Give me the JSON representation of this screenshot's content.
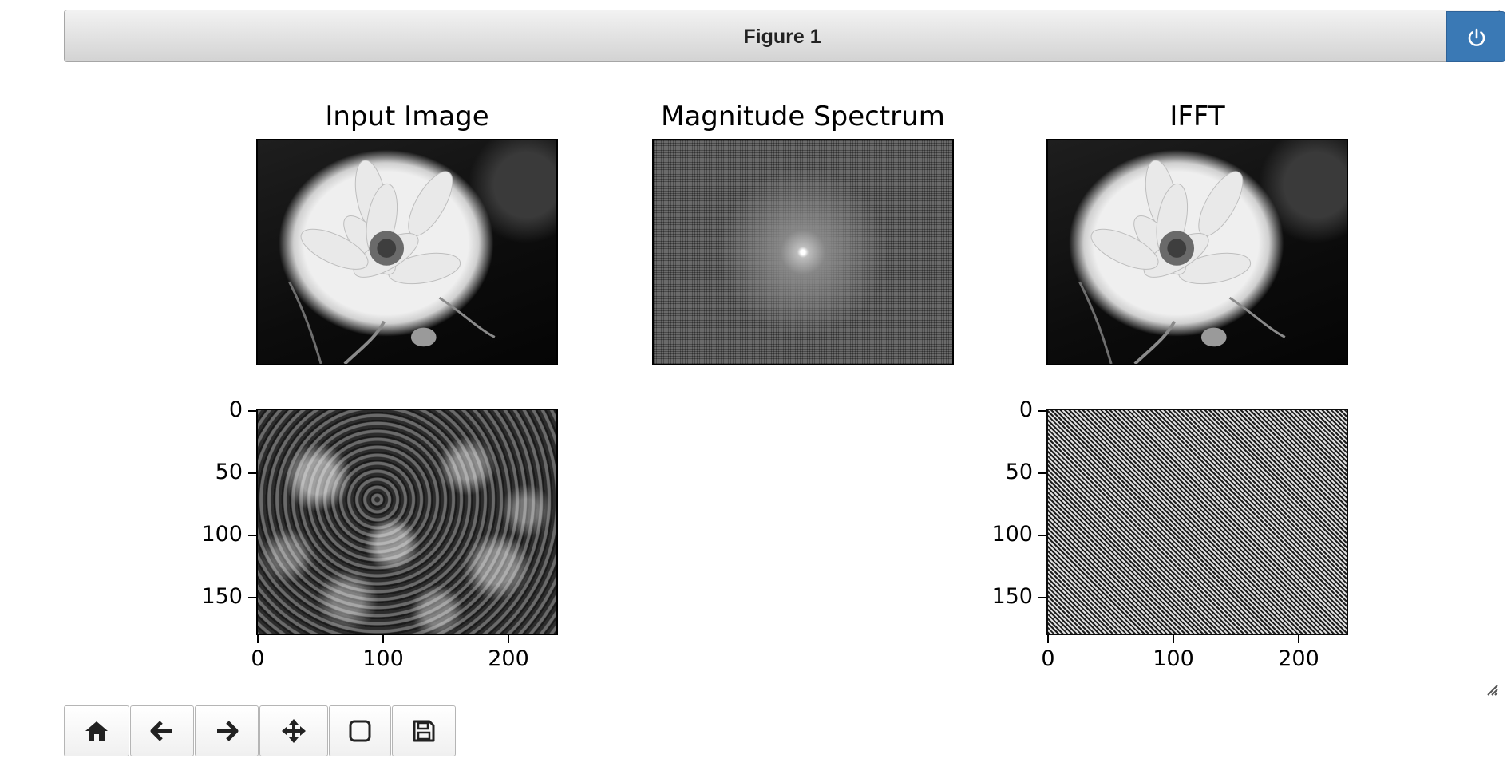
{
  "window": {
    "title": "Figure 1",
    "power_icon": "power-icon"
  },
  "figure": {
    "panels": [
      {
        "id": "input-image",
        "title": "Input Image",
        "content": "grayscale photo of a white flower on a dark background"
      },
      {
        "id": "magnitude-spectrum",
        "title": "Magnitude Spectrum",
        "content": "log magnitude spectrum with bright center"
      },
      {
        "id": "ifft",
        "title": "IFFT",
        "content": "reconstructed grayscale flower image"
      },
      {
        "id": "phase-plot",
        "title": "",
        "content": "blotchy phase-like texture"
      },
      {
        "id": "noise-plot",
        "title": "",
        "content": "fine checkerboard noise pattern"
      }
    ],
    "y_ticks": [
      "0",
      "50",
      "100",
      "150"
    ],
    "x_ticks": [
      "0",
      "100",
      "200"
    ]
  },
  "toolbar": {
    "buttons": [
      {
        "name": "home-button",
        "icon": "home-icon"
      },
      {
        "name": "back-button",
        "icon": "arrow-left-icon"
      },
      {
        "name": "forward-button",
        "icon": "arrow-right-icon"
      },
      {
        "name": "pan-button",
        "icon": "move-icon"
      },
      {
        "name": "zoom-button",
        "icon": "zoom-rect-icon"
      },
      {
        "name": "save-button",
        "icon": "save-icon"
      }
    ]
  },
  "colors": {
    "power_button": "#3a79b5",
    "titlebar_top": "#f2f2f2",
    "titlebar_bottom": "#d3d3d3"
  }
}
